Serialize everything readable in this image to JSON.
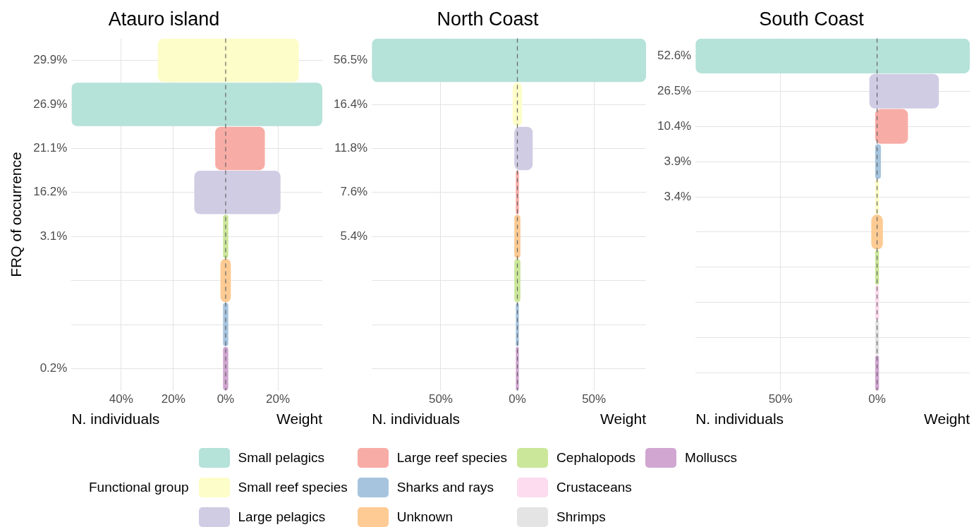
{
  "chart_data": [
    {
      "type": "bar",
      "orientation": "horizontal",
      "title": "Atauro island",
      "ylabel": "FRQ of occurrence",
      "annotations": [
        "N. individuals",
        "Weight"
      ],
      "categories": [
        "29.9%",
        "26.9%",
        "21.1%",
        "16.2%",
        "3.1%",
        null,
        null,
        "0.2%"
      ],
      "xlim": [
        -59,
        37
      ],
      "xticks": [
        {
          "value": -40,
          "label": "40%"
        },
        {
          "value": -20,
          "label": "20%"
        },
        {
          "value": 0,
          "label": "0%"
        },
        {
          "value": 20,
          "label": "20%"
        }
      ],
      "grid": true,
      "ref_lines": [
        {
          "axis": "x",
          "value": 0,
          "line_style": "dashed",
          "color": "#666666"
        }
      ],
      "series": [
        {
          "color": "#fdfdc9",
          "base": [
            -26,
            null,
            null,
            null,
            null,
            null,
            null,
            null
          ],
          "values": [
            54,
            null,
            null,
            null,
            null,
            null,
            null,
            null
          ]
        },
        {
          "color": "#b5e2d9",
          "base": [
            null,
            -59,
            null,
            null,
            null,
            null,
            null,
            null
          ],
          "values": [
            null,
            96,
            null,
            null,
            null,
            null,
            null,
            null
          ]
        },
        {
          "color": "#f8aca6",
          "base": [
            null,
            null,
            -4,
            null,
            null,
            null,
            null,
            null
          ],
          "values": [
            null,
            null,
            19,
            null,
            null,
            null,
            null,
            null
          ]
        },
        {
          "color": "#d0cce4",
          "base": [
            null,
            null,
            null,
            -12,
            null,
            null,
            null,
            null
          ],
          "values": [
            null,
            null,
            null,
            33,
            null,
            null,
            null,
            null
          ]
        },
        {
          "color": "#cbe79a",
          "base": [
            null,
            null,
            null,
            null,
            -1,
            null,
            null,
            null
          ],
          "values": [
            null,
            null,
            null,
            null,
            2,
            null,
            null,
            null
          ]
        },
        {
          "color": "#fdcb93",
          "base": [
            null,
            null,
            null,
            null,
            null,
            -2,
            null,
            null
          ],
          "values": [
            null,
            null,
            null,
            null,
            null,
            4,
            null,
            null
          ]
        },
        {
          "color": "#a6c4de",
          "base": [
            null,
            null,
            null,
            null,
            null,
            null,
            -1,
            null
          ],
          "values": [
            null,
            null,
            null,
            null,
            null,
            null,
            2,
            null
          ]
        },
        {
          "color": "#d1a6d1",
          "base": [
            null,
            null,
            null,
            null,
            null,
            null,
            null,
            -1
          ],
          "values": [
            null,
            null,
            null,
            null,
            null,
            null,
            null,
            2
          ]
        }
      ]
    },
    {
      "type": "bar",
      "orientation": "horizontal",
      "title": "North Coast",
      "annotations": [
        "N. individuals",
        "Weight"
      ],
      "categories": [
        "56.5%",
        "16.4%",
        "11.8%",
        "7.6%",
        "5.4%",
        null,
        null,
        null
      ],
      "xlim": [
        -95,
        84
      ],
      "xticks": [
        {
          "value": -50,
          "label": "50%"
        },
        {
          "value": 0,
          "label": "0%"
        },
        {
          "value": 50,
          "label": "50%"
        }
      ],
      "grid": true,
      "ref_lines": [
        {
          "axis": "x",
          "value": 0,
          "line_style": "dashed",
          "color": "#666666"
        }
      ],
      "series": [
        {
          "color": "#b5e2d9",
          "base": [
            -95,
            null,
            null,
            null,
            null,
            null,
            null,
            null
          ],
          "values": [
            179,
            null,
            null,
            null,
            null,
            null,
            null,
            null
          ]
        },
        {
          "color": "#fdfdc9",
          "base": [
            null,
            -3,
            null,
            null,
            null,
            null,
            null,
            null
          ],
          "values": [
            null,
            6,
            null,
            null,
            null,
            null,
            null,
            null
          ]
        },
        {
          "color": "#d0cce4",
          "base": [
            null,
            null,
            -2,
            null,
            null,
            null,
            null,
            null
          ],
          "values": [
            null,
            null,
            12,
            null,
            null,
            null,
            null,
            null
          ]
        },
        {
          "color": "#f8aca6",
          "base": [
            null,
            null,
            null,
            -1,
            null,
            null,
            null,
            null
          ],
          "values": [
            null,
            null,
            null,
            2,
            null,
            null,
            null,
            null
          ]
        },
        {
          "color": "#fdcb93",
          "base": [
            null,
            null,
            null,
            null,
            -2,
            null,
            null,
            null
          ],
          "values": [
            null,
            null,
            null,
            null,
            4,
            null,
            null,
            null
          ]
        },
        {
          "color": "#cbe79a",
          "base": [
            null,
            null,
            null,
            null,
            null,
            -2,
            null,
            null
          ],
          "values": [
            null,
            null,
            null,
            null,
            null,
            4,
            null,
            null
          ]
        },
        {
          "color": "#a6c4de",
          "base": [
            null,
            null,
            null,
            null,
            null,
            null,
            -1,
            null
          ],
          "values": [
            null,
            null,
            null,
            null,
            null,
            null,
            2,
            null
          ]
        },
        {
          "color": "#d1a6d1",
          "base": [
            null,
            null,
            null,
            null,
            null,
            null,
            null,
            -1
          ],
          "values": [
            null,
            null,
            null,
            null,
            null,
            null,
            null,
            2
          ]
        }
      ]
    },
    {
      "type": "bar",
      "orientation": "horizontal",
      "title": "South Coast",
      "annotations": [
        "N. individuals",
        "Weight"
      ],
      "categories": [
        "52.6%",
        "26.5%",
        "10.4%",
        "3.9%",
        "3.4%",
        null,
        null,
        null,
        null,
        null
      ],
      "xlim": [
        -94,
        48
      ],
      "xticks": [
        {
          "value": -50,
          "label": "50%"
        },
        {
          "value": 0,
          "label": "0%"
        }
      ],
      "grid": true,
      "ref_lines": [
        {
          "axis": "x",
          "value": 0,
          "line_style": "dashed",
          "color": "#666666"
        }
      ],
      "legend": "bottom",
      "legend_title": "Functional group",
      "series": [
        {
          "name": "Small pelagics",
          "color": "#b5e2d9",
          "base": [
            -94,
            null,
            null,
            null,
            null,
            null,
            null,
            null,
            null,
            null
          ],
          "values": [
            142,
            null,
            null,
            null,
            null,
            null,
            null,
            null,
            null,
            null
          ]
        },
        {
          "name": "Small reef species",
          "color": "#fdfdc9",
          "base": [
            null,
            null,
            null,
            null,
            -1,
            null,
            null,
            null,
            null,
            null
          ],
          "values": [
            null,
            null,
            null,
            null,
            2,
            null,
            null,
            null,
            null,
            null
          ]
        },
        {
          "name": "Large pelagics",
          "color": "#d0cce4",
          "base": [
            null,
            -4,
            null,
            null,
            null,
            null,
            null,
            null,
            null,
            null
          ],
          "values": [
            null,
            36,
            null,
            null,
            null,
            null,
            null,
            null,
            null,
            null
          ]
        },
        {
          "name": "Large reef species",
          "color": "#f8aca6",
          "base": [
            null,
            null,
            -1,
            null,
            null,
            null,
            null,
            null,
            null,
            null
          ],
          "values": [
            null,
            null,
            17,
            null,
            null,
            null,
            null,
            null,
            null,
            null
          ]
        },
        {
          "name": "Sharks and rays",
          "color": "#a6c4de",
          "base": [
            null,
            null,
            null,
            -1,
            null,
            null,
            null,
            null,
            null,
            null
          ],
          "values": [
            null,
            null,
            null,
            3,
            null,
            null,
            null,
            null,
            null,
            null
          ]
        },
        {
          "name": "Unknown",
          "color": "#fdcb93",
          "base": [
            null,
            null,
            null,
            null,
            null,
            -3,
            null,
            null,
            null,
            null
          ],
          "values": [
            null,
            null,
            null,
            null,
            null,
            6,
            null,
            null,
            null,
            null
          ]
        },
        {
          "name": "Cephalopods",
          "color": "#cbe79a",
          "base": [
            null,
            null,
            null,
            null,
            null,
            null,
            -1,
            null,
            null,
            null
          ],
          "values": [
            null,
            null,
            null,
            null,
            null,
            null,
            2,
            null,
            null,
            null
          ]
        },
        {
          "name": "Crustaceans",
          "color": "#fcdcee",
          "base": [
            null,
            null,
            null,
            null,
            null,
            null,
            null,
            -1,
            null,
            null
          ],
          "values": [
            null,
            null,
            null,
            null,
            null,
            null,
            null,
            2,
            null,
            null
          ]
        },
        {
          "name": "Shrimps",
          "color": "#e4e4e4",
          "base": [
            null,
            null,
            null,
            null,
            null,
            null,
            null,
            null,
            -1,
            null
          ],
          "values": [
            null,
            null,
            null,
            null,
            null,
            null,
            null,
            null,
            2,
            null
          ]
        },
        {
          "name": "Molluscs",
          "color": "#d1a6d1",
          "base": [
            null,
            null,
            null,
            null,
            null,
            null,
            null,
            null,
            null,
            -1
          ],
          "values": [
            null,
            null,
            null,
            null,
            null,
            null,
            null,
            null,
            null,
            2
          ]
        }
      ]
    }
  ]
}
